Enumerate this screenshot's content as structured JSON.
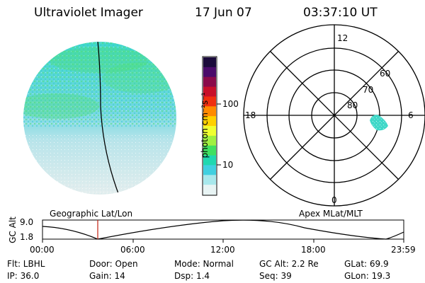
{
  "header": {
    "instrument": "Ultraviolet Imager",
    "date": "17 Jun 07",
    "time": "03:37:10 UT"
  },
  "colorbar": {
    "unit_label": "photon cm⁻²s⁻¹",
    "ticks": [
      "100",
      "10"
    ],
    "colors": [
      "#1a0a3a",
      "#4a0a6a",
      "#8a0a4a",
      "#c8102a",
      "#f03010",
      "#ff8a00",
      "#ffd000",
      "#f0ff30",
      "#a0f040",
      "#40e060",
      "#20d8b0",
      "#40d0e0",
      "#a8e8ec",
      "#e8f4f4"
    ]
  },
  "left_panel": {
    "caption": "Geographic Lat/Lon"
  },
  "right_panel": {
    "caption": "Apex MLat/MLT",
    "mlt_labels": {
      "top": "12",
      "left": "18",
      "right": "6",
      "bottom": "0"
    },
    "lat_labels": [
      "60",
      "70",
      "80"
    ]
  },
  "timeline": {
    "ylabel": "GC Alt",
    "yticks": [
      "9.0",
      "1.8"
    ],
    "xticks": [
      "00:00",
      "06:00",
      "12:00",
      "18:00",
      "23:59"
    ]
  },
  "info": {
    "flt": "Flt: LBHL",
    "ip": "IP: 36.0",
    "door": "Door: Open",
    "gain": "Gain: 14",
    "mode": "Mode: Normal",
    "dsp": "Dsp:    1.4",
    "gcalt": "GC Alt: 2.2 Re",
    "seq": "Seq: 39",
    "glat": "GLat:  69.9",
    "glon": "GLon:  19.3"
  }
}
